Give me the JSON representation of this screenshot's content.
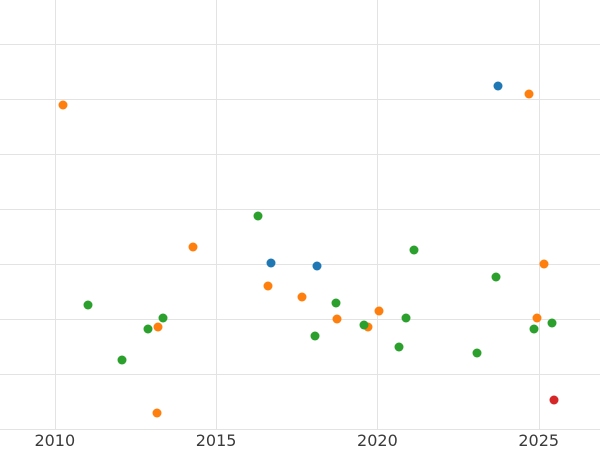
{
  "chart_data": {
    "type": "scatter",
    "title": "",
    "xlabel": "",
    "ylabel": "",
    "grid": true,
    "legend": "none",
    "xlim": [
      2008.3,
      2026.9
    ],
    "ylim": [
      0,
      7.8
    ],
    "x_ticks": [
      2010,
      2015,
      2020,
      2025
    ],
    "x_tick_labels": [
      "2010",
      "2015",
      "2020",
      "2025"
    ],
    "y_gridlines": [
      0,
      1,
      2,
      3,
      4,
      5,
      6,
      7
    ],
    "y_axis_note": "y axis unlabeled; y values estimated in gridline units from bottom gridline",
    "colors": {
      "orange": "#ff7f0e",
      "green": "#2ca02c",
      "blue": "#1f77b4",
      "red": "#d62728"
    },
    "series": [
      {
        "name": "orange",
        "color": "#ff7f0e",
        "points": [
          [
            2010.25,
            5.89
          ],
          [
            2013.17,
            0.29
          ],
          [
            2013.2,
            1.85
          ],
          [
            2014.29,
            3.31
          ],
          [
            2016.6,
            2.6
          ],
          [
            2017.67,
            2.4
          ],
          [
            2018.73,
            2.0
          ],
          [
            2019.72,
            1.85
          ],
          [
            2020.06,
            2.15
          ],
          [
            2024.7,
            6.1
          ],
          [
            2024.94,
            2.02
          ],
          [
            2025.16,
            3.0
          ]
        ]
      },
      {
        "name": "green",
        "color": "#2ca02c",
        "points": [
          [
            2011.02,
            2.25
          ],
          [
            2012.08,
            1.25
          ],
          [
            2012.89,
            1.82
          ],
          [
            2013.35,
            2.02
          ],
          [
            2016.3,
            3.87
          ],
          [
            2018.07,
            1.69
          ],
          [
            2018.7,
            2.29
          ],
          [
            2019.57,
            1.89
          ],
          [
            2020.68,
            1.49
          ],
          [
            2020.87,
            2.02
          ],
          [
            2021.12,
            3.25
          ],
          [
            2023.1,
            1.38
          ],
          [
            2023.66,
            2.76
          ],
          [
            2024.85,
            1.82
          ],
          [
            2025.41,
            1.93
          ]
        ]
      },
      {
        "name": "blue",
        "color": "#1f77b4",
        "points": [
          [
            2016.7,
            3.02
          ],
          [
            2018.13,
            2.96
          ],
          [
            2023.75,
            6.24
          ]
        ]
      },
      {
        "name": "red",
        "color": "#d62728",
        "points": [
          [
            2025.47,
            0.53
          ]
        ]
      }
    ]
  }
}
